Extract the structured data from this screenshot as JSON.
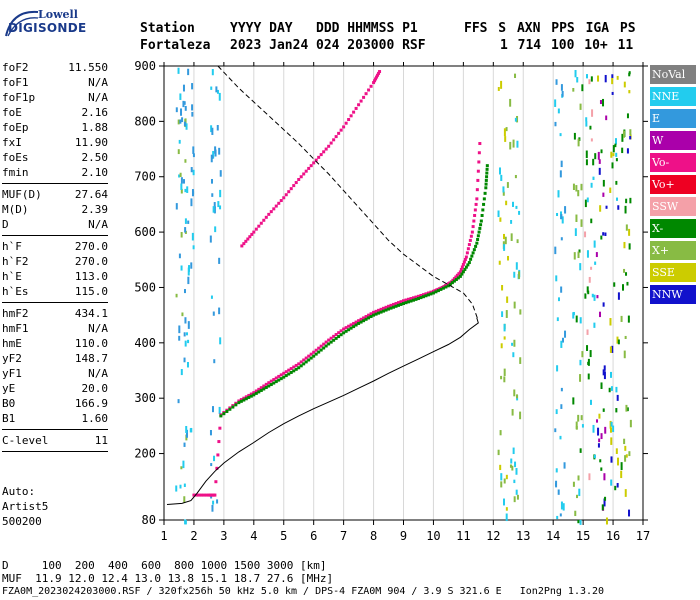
{
  "logo": {
    "top": "Lowell",
    "bottom": "DIGISONDE",
    "color": "#1a3a8a"
  },
  "header": {
    "labels": [
      "Station",
      "YYYY DAY",
      "DDD HHMMSS P1",
      "FFS S AXN PPS IGA PS"
    ],
    "values": [
      "Fortaleza",
      "2023 Jan24",
      "024 203000 RSF",
      "1 714 100 10+ 11"
    ]
  },
  "params": {
    "group1": [
      {
        "name": "foF2",
        "value": "11.550"
      },
      {
        "name": "foF1",
        "value": "N/A"
      },
      {
        "name": "foF1p",
        "value": "N/A"
      },
      {
        "name": "foE",
        "value": "2.16"
      },
      {
        "name": "foEp",
        "value": "1.88"
      },
      {
        "name": "fxI",
        "value": "11.90"
      },
      {
        "name": "foEs",
        "value": "2.50"
      },
      {
        "name": "fmin",
        "value": "2.10"
      }
    ],
    "group2": [
      {
        "name": "MUF(D)",
        "value": "27.64"
      },
      {
        "name": "M(D)",
        "value": "2.39"
      },
      {
        "name": "D",
        "value": "N/A"
      }
    ],
    "group3": [
      {
        "name": "h`F",
        "value": "270.0"
      },
      {
        "name": "h`F2",
        "value": "270.0"
      },
      {
        "name": "h`E",
        "value": "113.0"
      },
      {
        "name": "h`Es",
        "value": "115.0"
      }
    ],
    "group4": [
      {
        "name": "hmF2",
        "value": "434.1"
      },
      {
        "name": "hmF1",
        "value": "N/A"
      },
      {
        "name": "hmE",
        "value": "110.0"
      },
      {
        "name": "yF2",
        "value": "148.7"
      },
      {
        "name": "yF1",
        "value": "N/A"
      },
      {
        "name": "yE",
        "value": "20.0"
      },
      {
        "name": "B0",
        "value": "166.9"
      },
      {
        "name": "B1",
        "value": "1.60"
      }
    ],
    "group5": [
      {
        "name": "C-level",
        "value": "11"
      }
    ]
  },
  "auto": {
    "line1": "Auto:",
    "line2": "Artist5",
    "line3": "500200"
  },
  "legend": [
    {
      "label": "NoVal",
      "color": "#808080"
    },
    {
      "label": "NNE",
      "color": "#22ccee"
    },
    {
      "label": "E",
      "color": "#3399dd"
    },
    {
      "label": "W",
      "color": "#aa00aa"
    },
    {
      "label": "Vo-",
      "color": "#ee1188"
    },
    {
      "label": "Vo+",
      "color": "#ee0022"
    },
    {
      "label": "SSW",
      "color": "#f4a0a8"
    },
    {
      "label": "X-",
      "color": "#008800"
    },
    {
      "label": "X+",
      "color": "#88bb44"
    },
    {
      "label": "SSE",
      "color": "#cccc00"
    },
    {
      "label": "NNW",
      "color": "#1111cc"
    }
  ],
  "footer": {
    "line1": "D     100  200  400  600  800 1000 1500 3000 [km]",
    "line2": "MUF  11.9 12.0 12.4 13.0 13.8 15.1 18.7 27.6 [MHz]",
    "line3": "FZA0M_2023024203000.RSF / 320fx256h 50 kHz 5.0 km / DPS-4 FZA0M 904 / 3.9 S 321.6 E   Ion2Png 1.3.20"
  },
  "chart_data": {
    "type": "scatter",
    "xlim": [
      1,
      17
    ],
    "ylim": [
      80,
      900
    ],
    "xticks": [
      1,
      2,
      3,
      4,
      5,
      6,
      7,
      8,
      9,
      10,
      11,
      12,
      13,
      14,
      15,
      16,
      17
    ],
    "yticks": [
      80,
      200,
      300,
      400,
      500,
      600,
      700,
      800,
      900
    ],
    "grid": "vertical",
    "series": [
      {
        "color": "#ee1188",
        "points": [
          [
            2.0,
            125
          ],
          [
            2.5,
            125
          ],
          [
            2.7,
            125
          ],
          [
            2.9,
            270
          ],
          [
            3.5,
            295
          ],
          [
            4.0,
            310
          ],
          [
            4.5,
            328
          ],
          [
            5.0,
            345
          ],
          [
            5.5,
            362
          ],
          [
            6.0,
            383
          ],
          [
            6.5,
            405
          ],
          [
            7.0,
            425
          ],
          [
            7.5,
            440
          ],
          [
            8.0,
            455
          ],
          [
            8.5,
            466
          ],
          [
            9.0,
            476
          ],
          [
            9.5,
            484
          ],
          [
            10.0,
            493
          ],
          [
            10.3,
            500
          ],
          [
            10.6,
            510
          ],
          [
            10.9,
            528
          ],
          [
            11.1,
            555
          ],
          [
            11.3,
            600
          ],
          [
            11.45,
            660
          ],
          [
            11.55,
            760
          ]
        ]
      },
      {
        "color": "#008800",
        "points": [
          [
            2.9,
            268
          ],
          [
            3.5,
            292
          ],
          [
            4.0,
            306
          ],
          [
            4.5,
            322
          ],
          [
            5.0,
            338
          ],
          [
            5.5,
            355
          ],
          [
            6.0,
            376
          ],
          [
            6.5,
            398
          ],
          [
            7.0,
            418
          ],
          [
            7.5,
            435
          ],
          [
            8.0,
            450
          ],
          [
            8.5,
            461
          ],
          [
            9.0,
            471
          ],
          [
            9.5,
            480
          ],
          [
            10.0,
            490
          ],
          [
            10.5,
            503
          ],
          [
            10.9,
            520
          ],
          [
            11.2,
            545
          ],
          [
            11.45,
            580
          ],
          [
            11.6,
            620
          ],
          [
            11.75,
            680
          ],
          [
            11.8,
            720
          ]
        ]
      },
      {
        "color": "#ee1188",
        "points": [
          [
            3.6,
            575
          ],
          [
            4.0,
            600
          ],
          [
            4.5,
            632
          ],
          [
            5.0,
            662
          ],
          [
            5.5,
            695
          ],
          [
            6.0,
            725
          ],
          [
            6.5,
            755
          ],
          [
            7.0,
            790
          ],
          [
            7.5,
            830
          ],
          [
            8.0,
            870
          ],
          [
            8.2,
            890
          ]
        ]
      }
    ],
    "curves": [
      {
        "style": "solid",
        "points": [
          [
            1.1,
            108
          ],
          [
            1.6,
            110
          ],
          [
            1.9,
            115
          ],
          [
            2.1,
            128
          ],
          [
            2.4,
            150
          ],
          [
            2.7,
            168
          ],
          [
            3.0,
            183
          ],
          [
            3.5,
            203
          ],
          [
            4.0,
            220
          ],
          [
            4.5,
            238
          ],
          [
            5.0,
            254
          ],
          [
            5.5,
            268
          ],
          [
            6.0,
            281
          ],
          [
            6.5,
            293
          ],
          [
            7.0,
            305
          ],
          [
            7.5,
            318
          ],
          [
            8.0,
            331
          ],
          [
            8.5,
            345
          ],
          [
            9.0,
            358
          ],
          [
            9.5,
            371
          ],
          [
            10.0,
            384
          ],
          [
            10.5,
            397
          ],
          [
            10.9,
            410
          ],
          [
            11.2,
            424
          ],
          [
            11.5,
            436
          ],
          [
            11.45,
            445
          ]
        ]
      },
      {
        "style": "dashed",
        "points": [
          [
            2.8,
            900
          ],
          [
            3.5,
            860
          ],
          [
            4.0,
            835
          ],
          [
            4.5,
            810
          ],
          [
            5.0,
            785
          ],
          [
            5.5,
            760
          ],
          [
            6.0,
            732
          ],
          [
            6.5,
            705
          ],
          [
            7.0,
            675
          ],
          [
            7.5,
            645
          ],
          [
            8.0,
            615
          ],
          [
            8.5,
            585
          ],
          [
            9.0,
            560
          ],
          [
            9.5,
            540
          ],
          [
            10.0,
            520
          ],
          [
            10.5,
            505
          ],
          [
            11.0,
            490
          ],
          [
            11.3,
            470
          ],
          [
            11.5,
            440
          ]
        ]
      }
    ]
  }
}
